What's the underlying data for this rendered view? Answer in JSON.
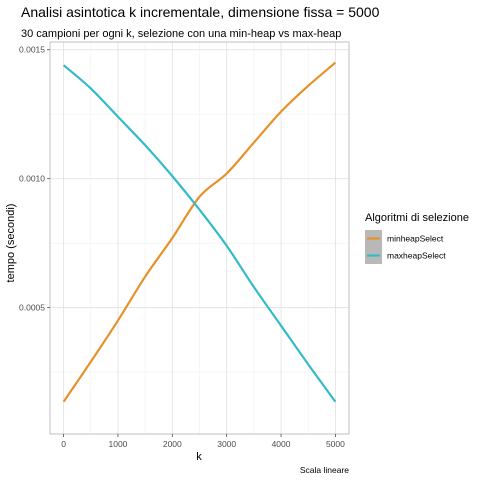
{
  "chart_data": {
    "type": "line",
    "title": "Analisi asintotica k incrementale, dimensione fissa = 5000",
    "subtitle": "30 campioni per ogni k, selezione con una min-heap vs max-heap",
    "xlabel": "k",
    "ylabel": "tempo (secondi)",
    "caption": "Scala lineare",
    "xlim": [
      -250,
      5250
    ],
    "ylim": [
      1e-05,
      0.00153
    ],
    "x_ticks": [
      0,
      1000,
      2000,
      3000,
      4000,
      5000
    ],
    "x_tick_labels": [
      "0",
      "1000",
      "2000",
      "3000",
      "4000",
      "5000"
    ],
    "y_ticks": [
      0.0005,
      0.001,
      0.0015
    ],
    "y_tick_labels": [
      "0.0005",
      "0.0010",
      "0.0015"
    ],
    "grid": true,
    "legend": {
      "title": "Algoritmi di selezione",
      "position": "right"
    },
    "series": [
      {
        "name": "minheapSelect",
        "color": "#E8912A",
        "x": [
          0,
          500,
          1000,
          1500,
          2000,
          2500,
          3000,
          3500,
          4000,
          4500,
          5000
        ],
        "y": [
          0.000135,
          0.00029,
          0.00045,
          0.00062,
          0.00077,
          0.00093,
          0.00102,
          0.00114,
          0.00126,
          0.00136,
          0.00145
        ]
      },
      {
        "name": "maxheapSelect",
        "color": "#33BBC9",
        "x": [
          0,
          500,
          1000,
          1500,
          2000,
          2500,
          3000,
          3500,
          4000,
          4500,
          5000
        ],
        "y": [
          0.00144,
          0.00135,
          0.00124,
          0.00113,
          0.00101,
          0.00088,
          0.00074,
          0.00058,
          0.00043,
          0.00028,
          0.000135
        ]
      }
    ]
  }
}
